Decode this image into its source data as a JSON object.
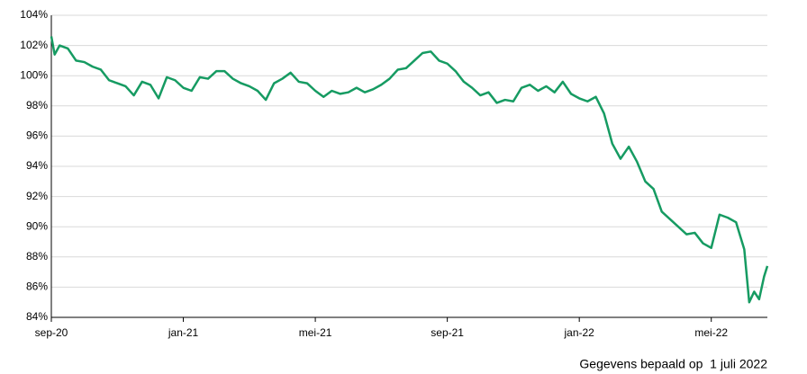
{
  "chart_data": {
    "type": "line",
    "x": [
      0,
      0.1,
      0.25,
      0.5,
      0.75,
      1,
      1.25,
      1.5,
      1.75,
      2,
      2.25,
      2.5,
      2.75,
      3,
      3.25,
      3.5,
      3.75,
      4,
      4.25,
      4.5,
      4.75,
      5,
      5.25,
      5.5,
      5.75,
      6,
      6.25,
      6.5,
      6.75,
      7,
      7.25,
      7.5,
      7.75,
      8,
      8.25,
      8.5,
      8.75,
      9,
      9.25,
      9.5,
      9.75,
      10,
      10.25,
      10.5,
      10.75,
      11,
      11.25,
      11.5,
      11.75,
      12,
      12.25,
      12.5,
      12.75,
      13,
      13.25,
      13.5,
      13.75,
      14,
      14.25,
      14.5,
      14.75,
      15,
      15.25,
      15.5,
      15.75,
      16,
      16.25,
      16.5,
      16.75,
      17,
      17.25,
      17.5,
      17.75,
      18,
      18.25,
      18.5,
      18.75,
      19,
      19.25,
      19.5,
      19.75,
      20,
      20.25,
      20.5,
      20.75,
      21,
      21.15,
      21.3,
      21.45,
      21.6,
      21.7
    ],
    "series": [
      {
        "color": "#169b62",
        "values": [
          102.6,
          101.4,
          102.0,
          101.8,
          101.0,
          100.9,
          100.6,
          100.4,
          99.7,
          99.5,
          99.3,
          98.7,
          99.6,
          99.4,
          98.5,
          99.9,
          99.7,
          99.2,
          99.0,
          99.9,
          99.8,
          100.3,
          100.3,
          99.8,
          99.5,
          99.3,
          99.0,
          98.4,
          99.5,
          99.8,
          100.2,
          99.6,
          99.5,
          99.0,
          98.6,
          99.0,
          98.8,
          98.9,
          99.2,
          98.9,
          99.1,
          99.4,
          99.8,
          100.4,
          100.5,
          101.0,
          101.5,
          101.6,
          101.0,
          100.8,
          100.3,
          99.6,
          99.2,
          98.7,
          98.9,
          98.2,
          98.4,
          98.3,
          99.2,
          99.4,
          99.0,
          99.3,
          98.9,
          99.6,
          98.8,
          98.5,
          98.3,
          98.6,
          97.5,
          95.5,
          94.5,
          95.3,
          94.3,
          93.0,
          92.5,
          91.0,
          90.5,
          90.0,
          89.5,
          89.6,
          88.9,
          88.6,
          90.8,
          90.6,
          90.3,
          88.5,
          85.0,
          85.7,
          85.2,
          86.7,
          87.4
        ]
      }
    ],
    "xlim": [
      0,
      21.7
    ],
    "xticks": [
      {
        "value": 0,
        "label": "sep-20"
      },
      {
        "value": 4,
        "label": "jan-21"
      },
      {
        "value": 8,
        "label": "mei-21"
      },
      {
        "value": 12,
        "label": "sep-21"
      },
      {
        "value": 16,
        "label": "jan-22"
      },
      {
        "value": 20,
        "label": "mei-22"
      }
    ],
    "ylim": [
      84,
      104
    ],
    "yticks": [
      {
        "value": 84,
        "label": "84%"
      },
      {
        "value": 86,
        "label": "86%"
      },
      {
        "value": 88,
        "label": "88%"
      },
      {
        "value": 90,
        "label": "90%"
      },
      {
        "value": 92,
        "label": "92%"
      },
      {
        "value": 94,
        "label": "94%"
      },
      {
        "value": 96,
        "label": "96%"
      },
      {
        "value": 98,
        "label": "98%"
      },
      {
        "value": 100,
        "label": "100%"
      },
      {
        "value": 102,
        "label": "102%"
      },
      {
        "value": 104,
        "label": "104%"
      }
    ],
    "grid": true,
    "footnote": "Gegevens bepaald op  1 juli 2022"
  }
}
